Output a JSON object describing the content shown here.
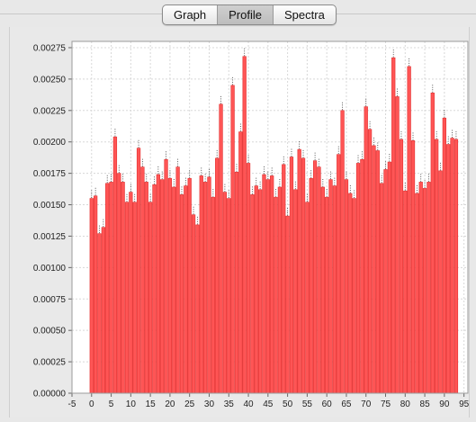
{
  "tabs": [
    {
      "label": "Graph",
      "active": false
    },
    {
      "label": "Profile",
      "active": true
    },
    {
      "label": "Spectra",
      "active": false
    }
  ],
  "colors": {
    "bar": "#ff5555",
    "bar_stroke": "#e23030",
    "plot_bg": "#ffffff",
    "grid": "#d8d8d8"
  },
  "chart_data": {
    "type": "bar",
    "title": "",
    "xlabel": "",
    "ylabel": "",
    "xlim": [
      -5,
      96
    ],
    "ylim": [
      0,
      0.0028
    ],
    "grid": true,
    "legend": "none",
    "x_ticks": [
      -5,
      0,
      5,
      10,
      15,
      20,
      25,
      30,
      35,
      40,
      45,
      50,
      55,
      60,
      65,
      70,
      75,
      80,
      85,
      90,
      95
    ],
    "y_ticks": [
      "0.00000",
      "0.00025",
      "0.00050",
      "0.00075",
      "0.00100",
      "0.00125",
      "0.00150",
      "0.00175",
      "0.00200",
      "0.00225",
      "0.00250",
      "0.00275"
    ],
    "x": [
      0,
      1,
      2,
      3,
      4,
      5,
      6,
      7,
      8,
      9,
      10,
      11,
      12,
      13,
      14,
      15,
      16,
      17,
      18,
      19,
      20,
      21,
      22,
      23,
      24,
      25,
      26,
      27,
      28,
      29,
      30,
      31,
      32,
      33,
      34,
      35,
      36,
      37,
      38,
      39,
      40,
      41,
      42,
      43,
      44,
      45,
      46,
      47,
      48,
      49,
      50,
      51,
      52,
      53,
      54,
      55,
      56,
      57,
      58,
      59,
      60,
      61,
      62,
      63,
      64,
      65,
      66,
      67,
      68,
      69,
      70,
      71,
      72,
      73,
      74,
      75,
      76,
      77,
      78,
      79,
      80,
      81,
      82,
      83,
      84,
      85,
      86,
      87,
      88,
      89,
      90,
      91,
      92,
      93
    ],
    "values": [
      0.00155,
      0.00157,
      0.00127,
      0.00132,
      0.00167,
      0.00168,
      0.00204,
      0.00175,
      0.00168,
      0.00152,
      0.0016,
      0.00152,
      0.00195,
      0.0018,
      0.00168,
      0.00152,
      0.00166,
      0.00174,
      0.0017,
      0.00186,
      0.00171,
      0.00164,
      0.0018,
      0.00158,
      0.00165,
      0.00171,
      0.00142,
      0.00134,
      0.00173,
      0.00168,
      0.00172,
      0.00156,
      0.00187,
      0.0023,
      0.0016,
      0.00155,
      0.00245,
      0.00176,
      0.00208,
      0.00268,
      0.00183,
      0.00158,
      0.00165,
      0.00162,
      0.00174,
      0.0017,
      0.00173,
      0.00156,
      0.00164,
      0.00182,
      0.00141,
      0.00188,
      0.00162,
      0.00194,
      0.00187,
      0.00152,
      0.00171,
      0.00185,
      0.0018,
      0.00164,
      0.00156,
      0.0017,
      0.00165,
      0.0019,
      0.00225,
      0.0017,
      0.00159,
      0.00155,
      0.00183,
      0.00186,
      0.00228,
      0.0021,
      0.00197,
      0.00193,
      0.00167,
      0.00178,
      0.00184,
      0.00267,
      0.00236,
      0.00202,
      0.00161,
      0.0026,
      0.00201,
      0.00159,
      0.00168,
      0.00163,
      0.00168,
      0.00239,
      0.00202,
      0.00177,
      0.00219,
      0.00198,
      0.00203,
      0.00202
    ]
  }
}
